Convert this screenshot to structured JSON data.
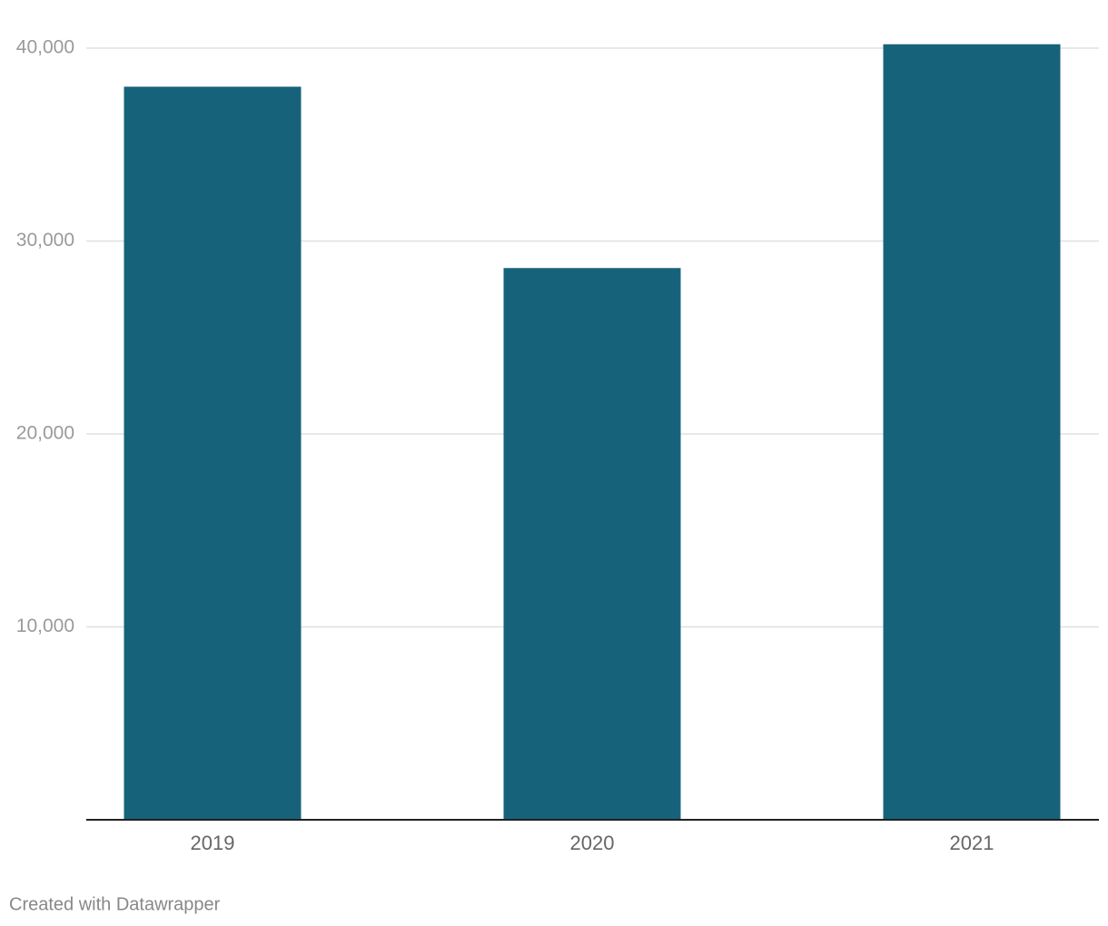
{
  "chart_data": {
    "type": "bar",
    "categories": [
      "2019",
      "2020",
      "2021"
    ],
    "values": [
      38000,
      28600,
      40200
    ],
    "color": "#17627b",
    "ylim": [
      0,
      40000
    ],
    "yticks": [
      {
        "value": 10000,
        "label": "10,000"
      },
      {
        "value": 20000,
        "label": "20,000"
      },
      {
        "value": 30000,
        "label": "30,000"
      },
      {
        "value": 40000,
        "label": "40,000"
      }
    ],
    "grid": true,
    "footer": "Created with Datawrapper"
  }
}
